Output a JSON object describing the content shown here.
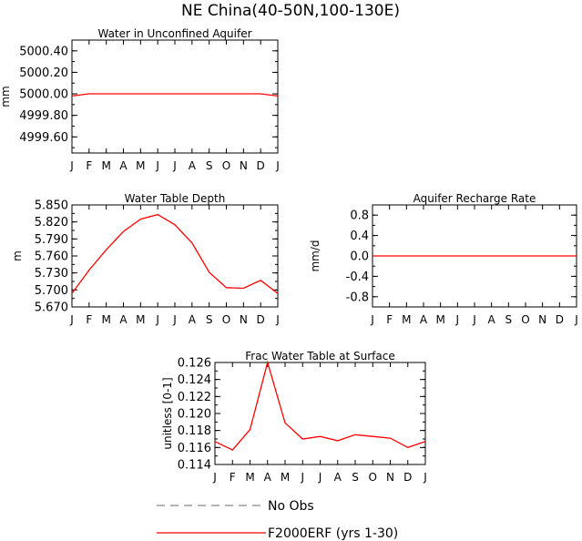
{
  "page_title": "NE China(40-50N,100-130E)",
  "months": [
    "J",
    "F",
    "M",
    "A",
    "M",
    "J",
    "J",
    "A",
    "S",
    "O",
    "N",
    "D",
    "J"
  ],
  "legend": {
    "no_obs_label": "No Obs",
    "model_label": "F2000ERF (yrs 1-30)",
    "no_obs_color": "#888888",
    "model_color": "#ff0000"
  },
  "chart_data": [
    {
      "type": "line",
      "title": "Water in Unconfined Aquifer",
      "xlabel": "",
      "ylabel": "mm",
      "categories": [
        "J",
        "F",
        "M",
        "A",
        "M",
        "J",
        "J",
        "A",
        "S",
        "O",
        "N",
        "D",
        "J"
      ],
      "ylim": [
        4999.45,
        5000.5
      ],
      "yticks": [
        5000.4,
        5000.2,
        5000.0,
        4999.8,
        4999.6
      ],
      "ytick_labels": [
        "5000.40",
        "5000.20",
        "5000.00",
        "4999.80",
        "4999.60"
      ],
      "series": [
        {
          "name": "F2000ERF (yrs 1-30)",
          "values": [
            4999.98,
            5000.0,
            5000.0,
            5000.0,
            5000.0,
            5000.0,
            5000.0,
            5000.0,
            5000.0,
            5000.0,
            5000.0,
            5000.0,
            4999.98
          ]
        }
      ]
    },
    {
      "type": "line",
      "title": "Water Table Depth",
      "xlabel": "",
      "ylabel": "m",
      "categories": [
        "J",
        "F",
        "M",
        "A",
        "M",
        "J",
        "J",
        "A",
        "S",
        "O",
        "N",
        "D",
        "J"
      ],
      "ylim": [
        5.67,
        5.85
      ],
      "yticks": [
        5.85,
        5.82,
        5.79,
        5.76,
        5.73,
        5.7,
        5.67
      ],
      "ytick_labels": [
        "5.850",
        "5.820",
        "5.790",
        "5.760",
        "5.730",
        "5.700",
        "5.670"
      ],
      "series": [
        {
          "name": "F2000ERF (yrs 1-30)",
          "values": [
            5.694,
            5.735,
            5.771,
            5.803,
            5.825,
            5.833,
            5.815,
            5.783,
            5.731,
            5.704,
            5.703,
            5.717,
            5.694
          ]
        }
      ]
    },
    {
      "type": "line",
      "title": "Aquifer Recharge Rate",
      "xlabel": "",
      "ylabel": "mm/d",
      "categories": [
        "J",
        "F",
        "M",
        "A",
        "M",
        "J",
        "J",
        "A",
        "S",
        "O",
        "N",
        "D",
        "J"
      ],
      "ylim": [
        -1.0,
        1.0
      ],
      "yticks": [
        0.8,
        0.4,
        0.0,
        -0.4,
        -0.8
      ],
      "ytick_labels": [
        "0.8",
        "0.4",
        "0.0",
        "-0.4",
        "-0.8"
      ],
      "series": [
        {
          "name": "F2000ERF (yrs 1-30)",
          "values": [
            0,
            0,
            0,
            0,
            0,
            0,
            0,
            0,
            0,
            0,
            0,
            0,
            0
          ]
        }
      ]
    },
    {
      "type": "line",
      "title": "Frac Water Table at Surface",
      "xlabel": "",
      "ylabel": "unitless [0-1]",
      "categories": [
        "J",
        "F",
        "M",
        "A",
        "M",
        "J",
        "J",
        "A",
        "S",
        "O",
        "N",
        "D",
        "J"
      ],
      "ylim": [
        0.114,
        0.126
      ],
      "yticks": [
        0.126,
        0.124,
        0.122,
        0.12,
        0.118,
        0.116,
        0.114
      ],
      "ytick_labels": [
        "0.126",
        "0.124",
        "0.122",
        "0.120",
        "0.118",
        "0.116",
        "0.114"
      ],
      "series": [
        {
          "name": "F2000ERF (yrs 1-30)",
          "values": [
            0.1167,
            0.1157,
            0.1181,
            0.126,
            0.1189,
            0.117,
            0.1173,
            0.1168,
            0.1175,
            0.1173,
            0.1171,
            0.116,
            0.1167
          ]
        }
      ]
    }
  ]
}
